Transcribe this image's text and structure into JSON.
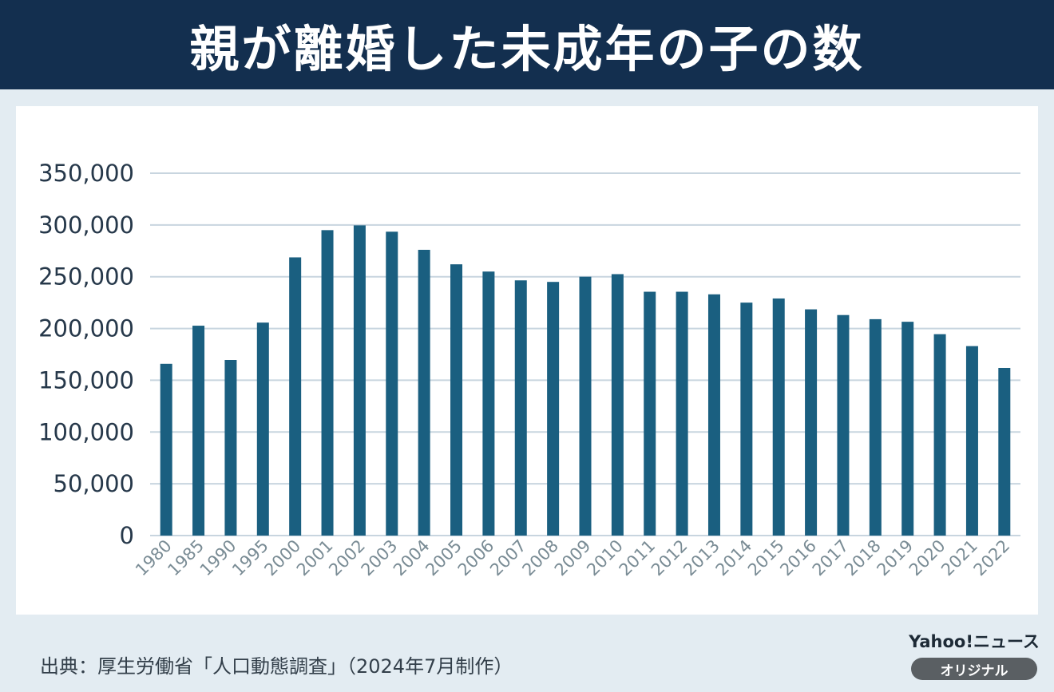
{
  "header": {
    "title": "親が離婚した未成年の子の数"
  },
  "footer": {
    "source": "出典：厚生労働省「人口動態調査」（2024年7月制作）",
    "brand": "Yahoo!ニュース",
    "badge": "オリジナル"
  },
  "colors": {
    "bar": "#1a5f80",
    "grid": "#c8d5df",
    "axis_label": "#26384a",
    "tick_label": "#7a8c95",
    "title_bg": "#132f4f"
  },
  "chart_data": {
    "type": "bar",
    "categories": [
      "1980",
      "1985",
      "1990",
      "1995",
      "2000",
      "2001",
      "2002",
      "2003",
      "2004",
      "2005",
      "2006",
      "2007",
      "2008",
      "2009",
      "2010",
      "2011",
      "2012",
      "2013",
      "2014",
      "2015",
      "2016",
      "2017",
      "2018",
      "2019",
      "2020",
      "2021",
      "2022"
    ],
    "values": [
      165900,
      202700,
      169600,
      205700,
      268700,
      295000,
      299600,
      293500,
      276000,
      262000,
      255000,
      246500,
      245000,
      250000,
      252500,
      235500,
      235500,
      233000,
      225000,
      229000,
      218500,
      213000,
      209000,
      206500,
      194500,
      183000,
      161900
    ],
    "yticks": [
      "0",
      "50,000",
      "100,000",
      "150,000",
      "200,000",
      "250,000",
      "300,000",
      "350,000"
    ],
    "ylim": [
      0,
      350000
    ],
    "grid": true,
    "xlabel": "",
    "ylabel": ""
  }
}
